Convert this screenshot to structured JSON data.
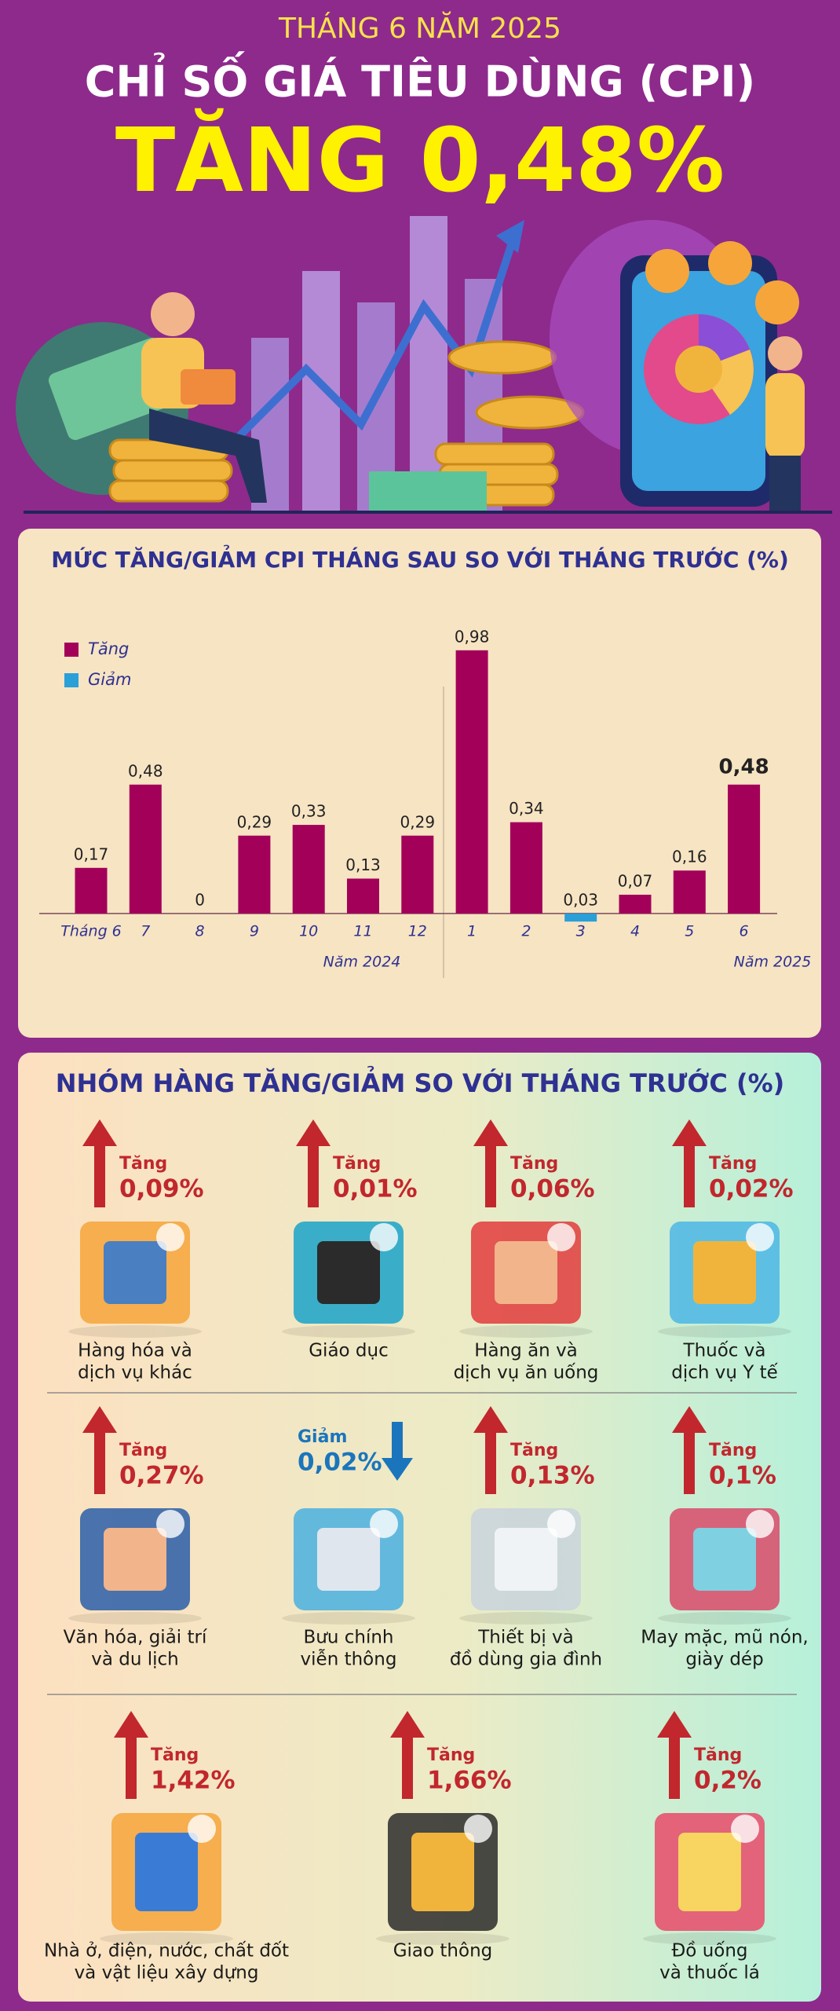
{
  "header": {
    "kicker": "THÁNG 6 NĂM 2025",
    "title": "CHỈ SỐ GIÁ TIÊU DÙNG (CPI)",
    "headline": "TĂNG 0,48%"
  },
  "chart_data": {
    "type": "bar",
    "title": "MỨC TĂNG/GIẢM CPI THÁNG SAU SO VỚI THÁNG TRƯỚC (%)",
    "categories": [
      "Tháng 6",
      "7",
      "8",
      "9",
      "10",
      "11",
      "12",
      "1",
      "2",
      "3",
      "4",
      "5",
      "6"
    ],
    "series": [
      {
        "name": "Tăng",
        "color": "#a3005a",
        "values": [
          0.17,
          0.48,
          0,
          0.29,
          0.33,
          0.13,
          0.29,
          0.98,
          0.34,
          null,
          0.07,
          0.16,
          0.48
        ],
        "value_labels": [
          "0,17",
          "0,48",
          "0",
          "0,29",
          "0,33",
          "0,13",
          "0,29",
          "0,98",
          "0,34",
          null,
          "0,07",
          "0,16",
          "0,48"
        ]
      },
      {
        "name": "Giảm",
        "color": "#2a9fd8",
        "values": [
          null,
          null,
          null,
          null,
          null,
          null,
          null,
          null,
          null,
          -0.03,
          null,
          null,
          null
        ],
        "value_labels": [
          null,
          null,
          null,
          null,
          null,
          null,
          null,
          null,
          null,
          "0,03",
          null,
          null,
          null
        ]
      }
    ],
    "annotations": [
      "Năm 2024",
      "Năm 2025"
    ],
    "ylim": [
      -0.05,
      1.0
    ],
    "legend": "top-left"
  },
  "groups": {
    "title": "NHÓM HÀNG TĂNG/GIẢM SO VỚI THÁNG TRƯỚC (%)",
    "items": [
      {
        "direction": "Tăng",
        "change": "0,09%",
        "name": [
          "Hàng hóa và",
          "dịch vụ khác"
        ]
      },
      {
        "direction": "Tăng",
        "change": "0,01%",
        "name": [
          "Giáo dục"
        ]
      },
      {
        "direction": "Tăng",
        "change": "0,06%",
        "name": [
          "Hàng ăn và",
          "dịch vụ ăn uống"
        ]
      },
      {
        "direction": "Tăng",
        "change": "0,02%",
        "name": [
          "Thuốc và",
          "dịch vụ Y tế"
        ]
      },
      {
        "direction": "Tăng",
        "change": "0,27%",
        "name": [
          "Văn hóa, giải trí",
          "và du lịch"
        ]
      },
      {
        "direction": "Giảm",
        "change": "0,02%",
        "name": [
          "Bưu chính",
          "viễn thông"
        ]
      },
      {
        "direction": "Tăng",
        "change": "0,13%",
        "name": [
          "Thiết bị và",
          "đồ dùng gia đình"
        ]
      },
      {
        "direction": "Tăng",
        "change": "0,1%",
        "name": [
          "May mặc, mũ nón,",
          "giày dép"
        ]
      },
      {
        "direction": "Tăng",
        "change": "1,42%",
        "name": [
          "Nhà ở, điện, nước, chất đốt",
          "và vật liệu xây dựng"
        ]
      },
      {
        "direction": "Tăng",
        "change": "1,66%",
        "name": [
          "Giao thông"
        ]
      },
      {
        "direction": "Tăng",
        "change": "0,2%",
        "name": [
          "Đồ uống",
          "và thuốc lá"
        ]
      }
    ]
  }
}
